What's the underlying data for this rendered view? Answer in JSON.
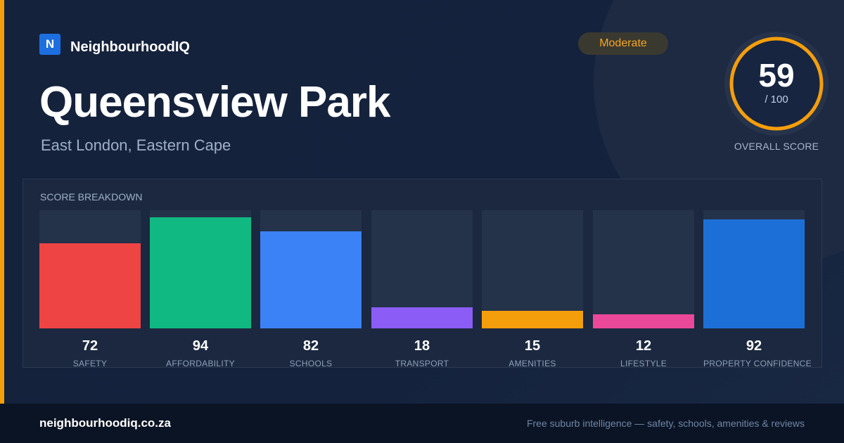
{
  "brand": {
    "logo_letter": "N",
    "name": "NeighbourhoodIQ"
  },
  "suburb": {
    "name": "Queensview Park",
    "location": "East London, Eastern Cape"
  },
  "badge": {
    "label": "Moderate",
    "color": "#f5a524"
  },
  "overall": {
    "score": "59",
    "max": "/ 100",
    "label": "OVERALL SCORE",
    "ring_color": "#f59e0b"
  },
  "breakdown": {
    "title": "SCORE BREAKDOWN",
    "items": [
      {
        "label": "SAFETY",
        "value": "72",
        "color": "#ef4444"
      },
      {
        "label": "AFFORDABILITY",
        "value": "94",
        "color": "#10b981"
      },
      {
        "label": "SCHOOLS",
        "value": "82",
        "color": "#3b82f6"
      },
      {
        "label": "TRANSPORT",
        "value": "18",
        "color": "#8b5cf6"
      },
      {
        "label": "AMENITIES",
        "value": "15",
        "color": "#f59e0b"
      },
      {
        "label": "LIFESTYLE",
        "value": "12",
        "color": "#ec4899"
      },
      {
        "label": "PROPERTY CONFIDENCE",
        "value": "92",
        "color": "#1d6fd8"
      }
    ]
  },
  "footer": {
    "domain": "neighbourhoodiq.co.za",
    "tagline": "Free suburb intelligence — safety, schools, amenities & reviews"
  }
}
